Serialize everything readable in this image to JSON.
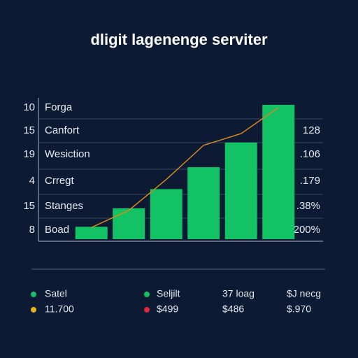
{
  "chart_data": {
    "type": "bar",
    "title": "dligit lagenenge serviter",
    "categories": [
      null,
      null,
      null,
      null,
      null,
      null
    ],
    "series": [
      {
        "type": "bar",
        "color": "#12c264",
        "values": [
          18,
          45,
          73,
          105,
          141,
          196
        ]
      },
      {
        "type": "line",
        "color": "#d4891e",
        "values": [
          17,
          42,
          87,
          137,
          154,
          192
        ]
      }
    ],
    "ylim": [
      0,
      200
    ],
    "rows": [
      {
        "number": 10,
        "label": "Forga"
      },
      {
        "number": 15,
        "label": "Canfort"
      },
      {
        "number": 19,
        "label": "Wesiction"
      },
      {
        "number": 4,
        "label": "Crregt"
      },
      {
        "number": 15,
        "label": "Stanges"
      },
      {
        "number": 8,
        "label": "Boad"
      }
    ],
    "right_labels": [
      "128",
      ".106",
      ".179",
      ".38%",
      "200%"
    ],
    "footer": [
      [
        {
          "color": "#12c264",
          "text": "Satel"
        },
        {
          "color": "#12c264",
          "text": "Seljilt"
        },
        {
          "text": "37 loag"
        },
        {
          "text": "$J necg"
        }
      ],
      [
        {
          "color": "#e8b21a",
          "text": "11.700"
        },
        {
          "color": "#e0283c",
          "text": "$499"
        },
        {
          "text": "$486"
        },
        {
          "text": "$.970"
        }
      ]
    ]
  }
}
